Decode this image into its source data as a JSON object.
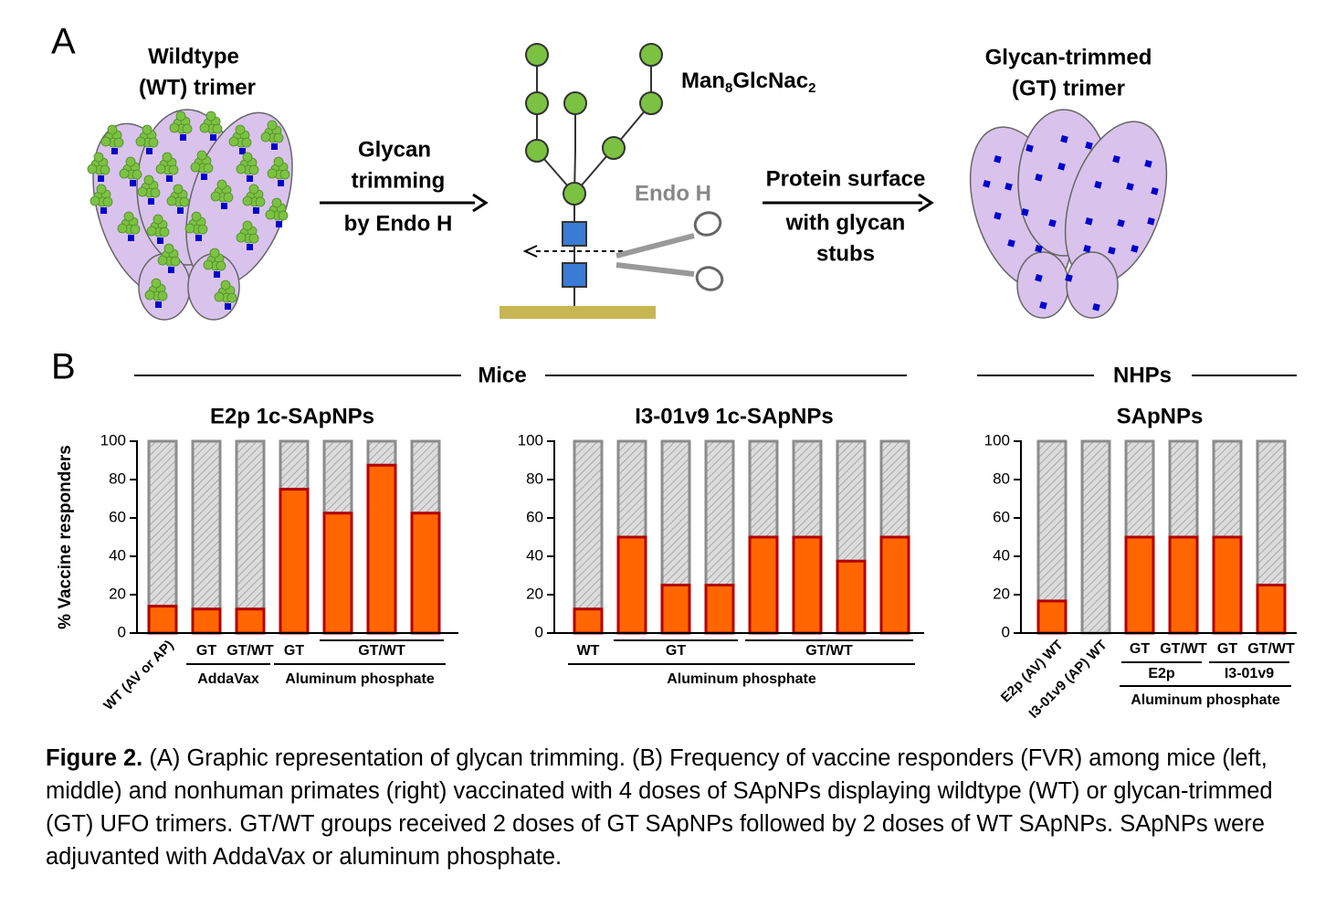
{
  "panel_a": {
    "label": "A",
    "wt_label": [
      "Wildtype",
      "(WT) trimer"
    ],
    "step1": [
      "Glycan",
      "trimming",
      "by Endo H"
    ],
    "glycan": [
      "Man",
      "8",
      "GlcNac",
      "2"
    ],
    "enzyme": "Endo H",
    "step2": [
      "Protein surface",
      "with glycan",
      "stubs"
    ],
    "gt_label": [
      "Glycan-trimmed",
      "(GT) trimer"
    ]
  },
  "panel_b": {
    "label": "B",
    "headers": [
      "Mice",
      "NHPs"
    ]
  },
  "chart_data": [
    {
      "type": "bar",
      "title": "E2p 1c-SApNPs",
      "ylabel": "% Vaccine responders",
      "categories": [
        "WT (AV or AP)",
        "GT",
        "GT/WT",
        "GT",
        null,
        null,
        null
      ],
      "subgroups": [
        null,
        null,
        null,
        null,
        "GT/WT",
        "GT/WT",
        "GT/WT"
      ],
      "groups": [
        null,
        "AddaVax",
        "AddaVax",
        "Aluminum phosphate",
        "Aluminum phosphate",
        "Aluminum phosphate",
        "Aluminum phosphate"
      ],
      "values": [
        14,
        12.5,
        12.5,
        75,
        62.5,
        87.5,
        62.5
      ],
      "color": "#ff6600",
      "edge_color": "#b30000",
      "remainder_color": "#8c8c8c",
      "ylim": [
        0,
        100
      ],
      "yticks": [
        0,
        20,
        40,
        60,
        80,
        100
      ]
    },
    {
      "type": "bar",
      "title": "I3-01v9 1c-SApNPs",
      "categories": [
        "WT",
        null,
        null,
        null,
        null,
        null,
        null,
        null
      ],
      "subgroups": [
        null,
        "GT",
        "GT",
        "GT",
        "GT/WT",
        "GT/WT",
        "GT/WT",
        "GT/WT"
      ],
      "groups": [
        "Aluminum phosphate",
        "Aluminum phosphate",
        "Aluminum phosphate",
        "Aluminum phosphate",
        "Aluminum phosphate",
        "Aluminum phosphate",
        "Aluminum phosphate",
        "Aluminum phosphate"
      ],
      "values": [
        12.5,
        50,
        25,
        25,
        50,
        50,
        37.5,
        50
      ],
      "color": "#ff6600",
      "edge_color": "#b30000",
      "remainder_color": "#8c8c8c",
      "ylim": [
        0,
        100
      ],
      "yticks": [
        0,
        20,
        40,
        60,
        80,
        100
      ]
    },
    {
      "type": "bar",
      "title": "SApNPs",
      "categories": [
        "E2p (AV) WT",
        "I3-01v9 (AP) WT",
        "GT",
        "GT/WT",
        "GT",
        "GT/WT"
      ],
      "subgroups": [
        null,
        null,
        "E2p",
        "E2p",
        "I3-01v9",
        "I3-01v9"
      ],
      "groups": [
        null,
        null,
        "Aluminum phosphate",
        "Aluminum phosphate",
        "Aluminum phosphate",
        "Aluminum phosphate"
      ],
      "values": [
        16.7,
        0,
        50,
        50,
        50,
        25
      ],
      "color": "#ff6600",
      "edge_color": "#b30000",
      "remainder_color": "#8c8c8c",
      "ylim": [
        0,
        100
      ],
      "yticks": [
        0,
        20,
        40,
        60,
        80,
        100
      ]
    }
  ],
  "caption": {
    "label": "Figure 2.",
    "text": "(A) Graphic representation of glycan trimming. (B) Frequency of vaccine responders (FVR) among  mice (left, middle) and nonhuman primates (right) vaccinated with 4 doses of SApNPs displaying wildtype (WT) or glycan-trimmed (GT) UFO trimers. GT/WT groups received 2 doses of GT SApNPs followed by 2 doses of WT SApNPs. SApNPs were adjuvanted with AddaVax or aluminum phosphate."
  }
}
